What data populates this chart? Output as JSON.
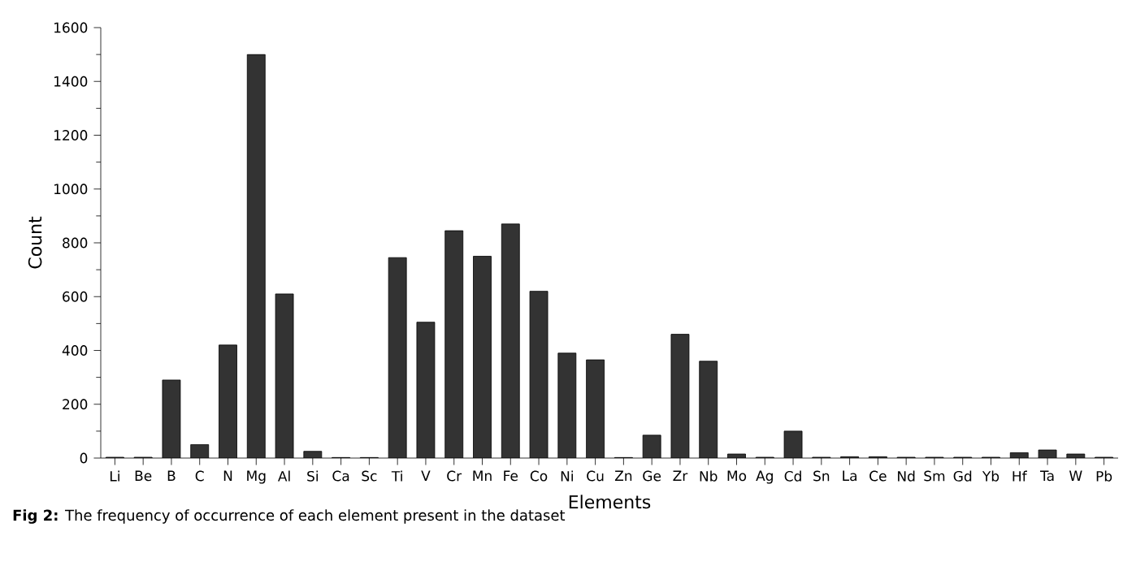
{
  "chart_data": {
    "type": "bar",
    "categories": [
      "Li",
      "Be",
      "B",
      "C",
      "N",
      "Mg",
      "Al",
      "Si",
      "Ca",
      "Sc",
      "Ti",
      "V",
      "Cr",
      "Mn",
      "Fe",
      "Co",
      "Ni",
      "Cu",
      "Zn",
      "Ge",
      "Zr",
      "Nb",
      "Mo",
      "Ag",
      "Cd",
      "Sn",
      "La",
      "Ce",
      "Nd",
      "Sm",
      "Gd",
      "Yb",
      "Hf",
      "Ta",
      "W",
      "Pb"
    ],
    "values": [
      3,
      3,
      290,
      50,
      420,
      1500,
      610,
      25,
      2,
      2,
      745,
      505,
      845,
      750,
      870,
      620,
      390,
      365,
      2,
      85,
      460,
      360,
      15,
      3,
      100,
      3,
      5,
      5,
      3,
      3,
      3,
      3,
      20,
      30,
      15,
      3
    ],
    "color": "#333333",
    "xlabel": "Elements",
    "ylabel": "Count",
    "ylim": [
      0,
      1600
    ],
    "yticks": [
      0,
      200,
      400,
      600,
      800,
      1000,
      1200,
      1400,
      1600
    ],
    "grid": false,
    "annotations": [
      "**Fig 2:** The frequency of occurrence of each element present in the dataset"
    ]
  }
}
